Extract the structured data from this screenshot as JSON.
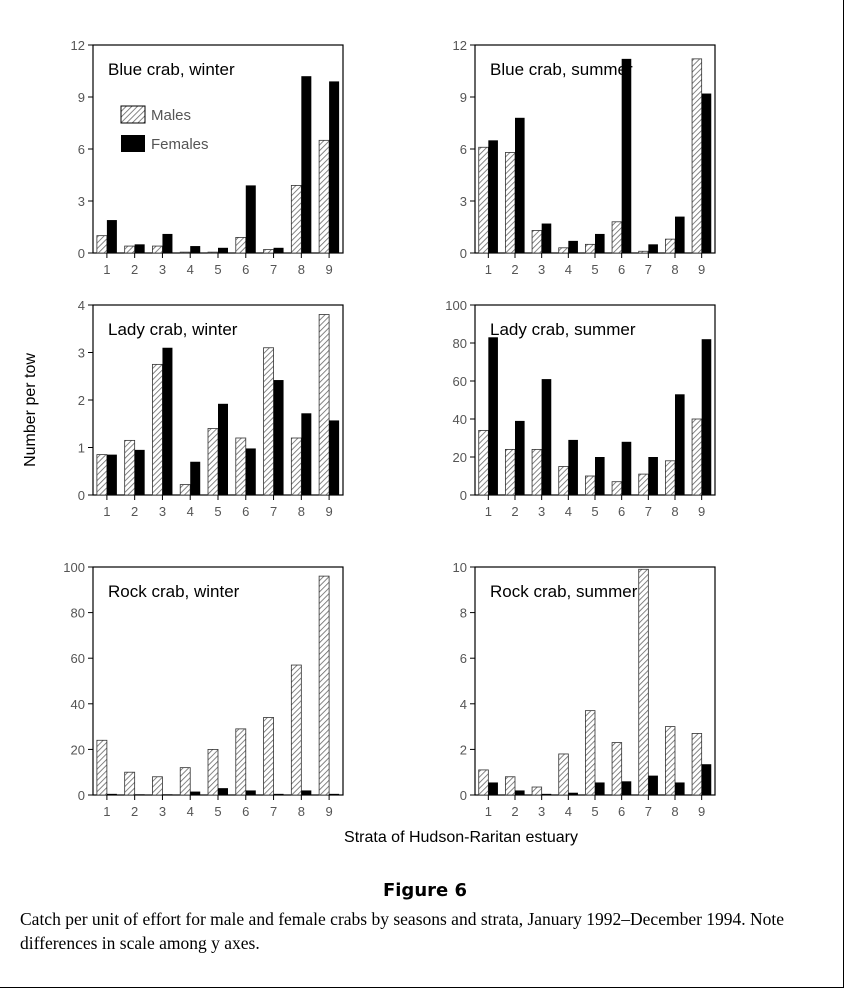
{
  "chart_data": [
    {
      "type": "bar",
      "title": "Blue crab, winter",
      "categories": [
        "1",
        "2",
        "3",
        "4",
        "5",
        "6",
        "7",
        "8",
        "9"
      ],
      "ylim": [
        0,
        12
      ],
      "yticks": [
        "0",
        "3",
        "6",
        "9",
        "12"
      ],
      "legend": "top-left",
      "series": [
        {
          "name": "Males",
          "values": [
            1.0,
            0.4,
            0.4,
            0.05,
            0.05,
            0.9,
            0.2,
            3.9,
            6.5
          ]
        },
        {
          "name": "Females",
          "values": [
            1.9,
            0.5,
            1.1,
            0.4,
            0.3,
            3.9,
            0.3,
            10.2,
            9.9
          ]
        }
      ]
    },
    {
      "type": "bar",
      "title": "Blue crab, summer",
      "categories": [
        "1",
        "2",
        "3",
        "4",
        "5",
        "6",
        "7",
        "8",
        "9"
      ],
      "ylim": [
        0,
        12
      ],
      "yticks": [
        "0",
        "3",
        "6",
        "9",
        "12"
      ],
      "series": [
        {
          "values": [
            6.1,
            5.8,
            1.3,
            0.3,
            0.5,
            1.8,
            0.1,
            0.8,
            11.2
          ]
        },
        {
          "values": [
            6.5,
            7.8,
            1.7,
            0.7,
            1.1,
            11.2,
            0.5,
            2.1,
            9.2
          ]
        }
      ]
    },
    {
      "type": "bar",
      "title": "Lady crab, winter",
      "categories": [
        "1",
        "2",
        "3",
        "4",
        "5",
        "6",
        "7",
        "8",
        "9"
      ],
      "ylim": [
        0,
        4
      ],
      "yticks": [
        "0",
        "1",
        "2",
        "3",
        "4"
      ],
      "series": [
        {
          "values": [
            0.85,
            1.15,
            2.75,
            0.22,
            1.4,
            1.2,
            3.1,
            1.2,
            3.8
          ]
        },
        {
          "values": [
            0.85,
            0.95,
            3.1,
            0.7,
            1.92,
            0.98,
            2.42,
            1.72,
            1.57
          ]
        }
      ]
    },
    {
      "type": "bar",
      "title": "Lady crab, summer",
      "categories": [
        "1",
        "2",
        "3",
        "4",
        "5",
        "6",
        "7",
        "8",
        "9"
      ],
      "ylim": [
        0,
        100
      ],
      "yticks": [
        "0",
        "20",
        "40",
        "60",
        "80",
        "100"
      ],
      "series": [
        {
          "values": [
            34,
            24,
            24,
            15,
            10,
            7,
            11,
            18,
            40
          ]
        },
        {
          "values": [
            83,
            39,
            61,
            29,
            20,
            28,
            20,
            53,
            82
          ]
        }
      ]
    },
    {
      "type": "bar",
      "title": "Rock crab, winter",
      "categories": [
        "1",
        "2",
        "3",
        "4",
        "5",
        "6",
        "7",
        "8",
        "9"
      ],
      "ylim": [
        0,
        100
      ],
      "yticks": [
        "0",
        "20",
        "40",
        "60",
        "80",
        "100"
      ],
      "series": [
        {
          "values": [
            24,
            10,
            8,
            12,
            20,
            29,
            34,
            57,
            96
          ]
        },
        {
          "values": [
            0.5,
            0.3,
            0.3,
            1.5,
            3,
            2,
            0.5,
            2,
            0.5
          ]
        }
      ]
    },
    {
      "type": "bar",
      "title": "Rock crab, summer",
      "categories": [
        "1",
        "2",
        "3",
        "4",
        "5",
        "6",
        "7",
        "8",
        "9"
      ],
      "ylim": [
        0,
        10
      ],
      "yticks": [
        "0",
        "2",
        "4",
        "6",
        "8",
        "10"
      ],
      "series": [
        {
          "values": [
            1.1,
            0.8,
            0.35,
            1.8,
            3.7,
            2.3,
            9.9,
            3.0,
            2.7
          ]
        },
        {
          "values": [
            0.55,
            0.2,
            0.05,
            0.1,
            0.55,
            0.6,
            0.85,
            0.55,
            1.35
          ]
        }
      ]
    }
  ],
  "ylabel": "Number per tow",
  "xlabel": "Strata of Hudson-Raritan estuary",
  "legend": {
    "males": "Males",
    "females": "Females"
  },
  "colors": {
    "males_pattern": "#666666",
    "females": "#000000",
    "frame": "#000000"
  },
  "figure_label": "Figure 6",
  "caption": "Catch per unit of effort for male and female crabs by seasons and strata, January 1992–December 1994. Note differences in scale among y axes."
}
